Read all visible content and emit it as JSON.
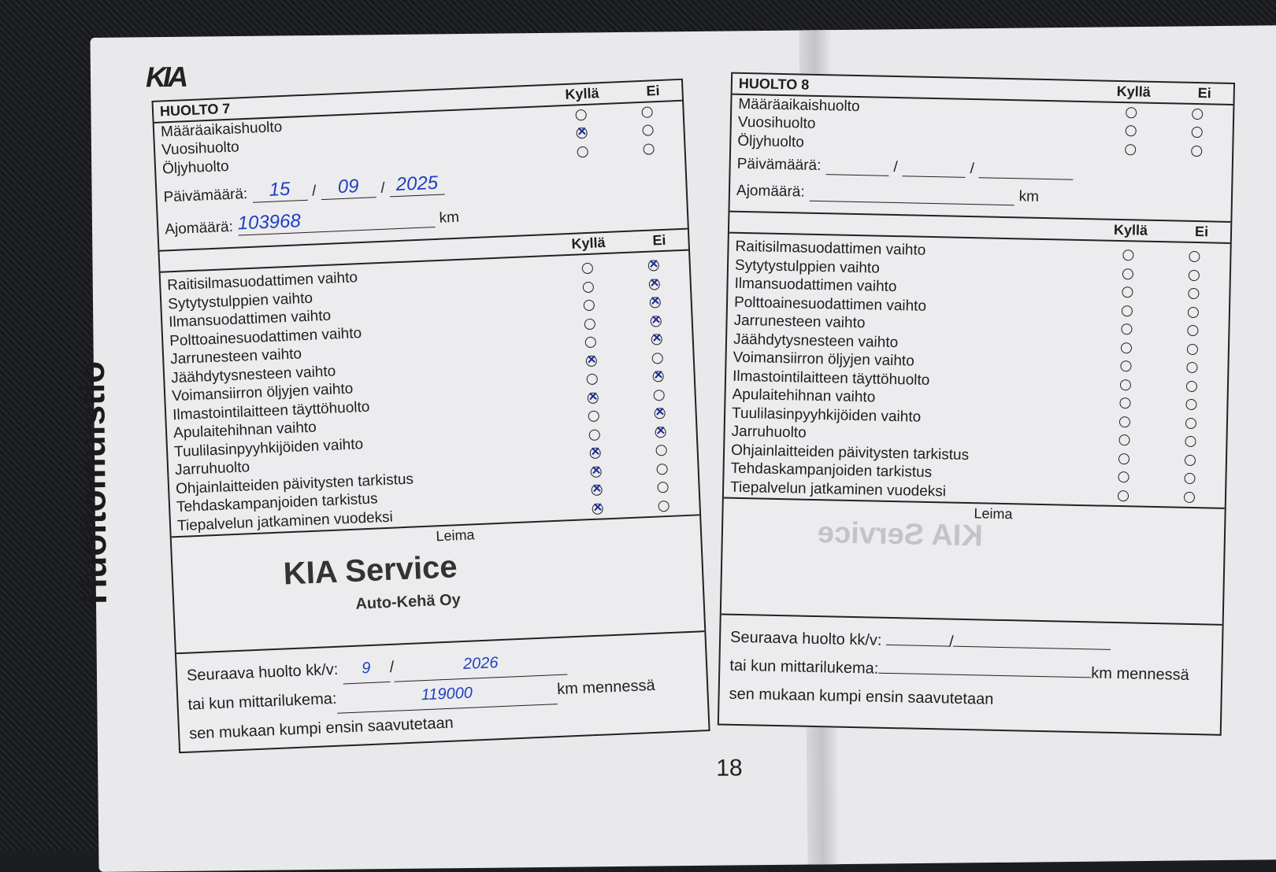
{
  "brand": "KIA",
  "side_title": "Huoltomuistio",
  "page_number": "18",
  "columns": {
    "yes": "Kyllä",
    "no": "Ei"
  },
  "left": {
    "title": "HUOLTO 7",
    "types": [
      {
        "label": "Määräaikaishuolto",
        "yes": false,
        "no": false
      },
      {
        "label": "Vuosihuolto",
        "yes": true,
        "no": false
      },
      {
        "label": "Öljyhuolto",
        "yes": false,
        "no": false
      }
    ],
    "date_label": "Päivämäärä:",
    "date": {
      "day": "15",
      "month": "09",
      "year": "2025"
    },
    "km_label": "Ajomäärä:",
    "km_value": "103968",
    "km_unit": "km",
    "items": [
      {
        "label": "Raitisilmasuodattimen vaihto",
        "yes": false,
        "no": true
      },
      {
        "label": "Sytytystulppien vaihto",
        "yes": false,
        "no": true
      },
      {
        "label": "Ilmansuodattimen vaihto",
        "yes": false,
        "no": true
      },
      {
        "label": "Polttoainesuodattimen vaihto",
        "yes": false,
        "no": true
      },
      {
        "label": "Jarrunesteen vaihto",
        "yes": false,
        "no": true
      },
      {
        "label": "Jäähdytysnesteen vaihto",
        "yes": true,
        "no": false
      },
      {
        "label": "Voimansiirron öljyjen vaihto",
        "yes": false,
        "no": true
      },
      {
        "label": "Ilmastointilaitteen täyttöhuolto",
        "yes": true,
        "no": false
      },
      {
        "label": "Apulaitehihnan vaihto",
        "yes": false,
        "no": true
      },
      {
        "label": "Tuulilasinpyyhkijöiden vaihto",
        "yes": false,
        "no": true
      },
      {
        "label": "Jarruhuolto",
        "yes": true,
        "no": false
      },
      {
        "label": "Ohjainlaitteiden päivitysten tarkistus",
        "yes": true,
        "no": false
      },
      {
        "label": "Tehdaskampanjoiden tarkistus",
        "yes": true,
        "no": false
      },
      {
        "label": "Tiepalvelun jatkaminen vuodeksi",
        "yes": true,
        "no": false
      }
    ],
    "stamp_label": "Leima",
    "stamp_brand": "KIA Service",
    "stamp_company": "Auto-Kehä Oy",
    "next_label": "Seuraava huolto kk/v:",
    "next_month": "9",
    "next_year": "2026",
    "odo_label": "tai kun mittarilukema:",
    "odo_value": "119000",
    "odo_suffix": "km mennessä",
    "whichever": "sen mukaan kumpi ensin saavutetaan"
  },
  "right": {
    "title": "HUOLTO 8",
    "types": [
      {
        "label": "Määräaikaishuolto"
      },
      {
        "label": "Vuosihuolto"
      },
      {
        "label": "Öljyhuolto"
      }
    ],
    "date_label": "Päivämäärä:",
    "km_label": "Ajomäärä:",
    "km_unit": "km",
    "items": [
      "Raitisilmasuodattimen vaihto",
      "Sytytystulppien vaihto",
      "Ilmansuodattimen vaihto",
      "Polttoainesuodattimen vaihto",
      "Jarrunesteen vaihto",
      "Jäähdytysnesteen vaihto",
      "Voimansiirron öljyjen vaihto",
      "Ilmastointilaitteen täyttöhuolto",
      "Apulaitehihnan vaihto",
      "Tuulilasinpyyhkijöiden vaihto",
      "Jarruhuolto",
      "Ohjainlaitteiden päivitysten tarkistus",
      "Tehdaskampanjoiden tarkistus",
      "Tiepalvelun jatkaminen vuodeksi"
    ],
    "stamp_label": "Leima",
    "next_label": "Seuraava huolto kk/v:",
    "odo_label": "tai kun mittarilukema:",
    "odo_suffix": "km mennessä",
    "whichever": "sen mukaan kumpi ensin saavutetaan"
  }
}
